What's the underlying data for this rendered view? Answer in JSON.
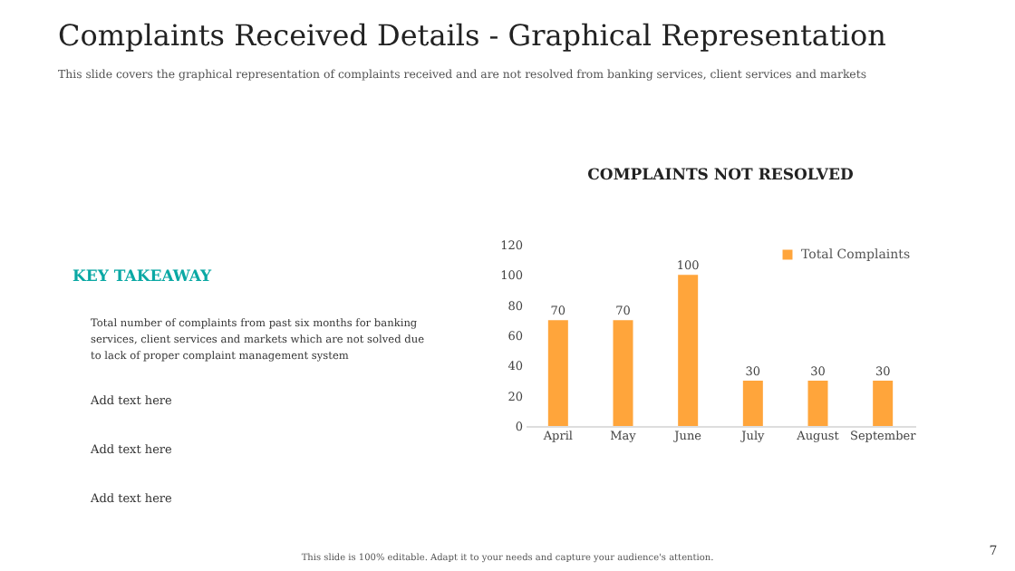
{
  "chart_data": {
    "type": "bar",
    "title": "COMPLAINTS NOT RESOLVED",
    "categories": [
      "April",
      "May",
      "June",
      "July",
      "August",
      "September"
    ],
    "series": [
      {
        "name": "Total Complaints",
        "color": "#ffa53b",
        "values": [
          70,
          70,
          100,
          30,
          30,
          30
        ]
      }
    ],
    "ylim": [
      0,
      120
    ],
    "yticks": [
      0,
      20,
      40,
      60,
      80,
      100,
      120
    ],
    "legend": "top right",
    "data_labels": true,
    "annotations": [
      "Complaints Received Details - Graphical Representation",
      "This slide covers the graphical representation of complaints received and are not resolved from banking services, client services and markets",
      "KEY TAKEAWAY",
      "Total number of complaints from past six months for banking services, client services and markets which are not solved due to lack of proper complaint management system",
      "Add text here",
      "Add text here",
      "Add text here",
      "This slide is 100% editable. Adapt it to your needs and capture your audience's attention.",
      "7"
    ]
  }
}
